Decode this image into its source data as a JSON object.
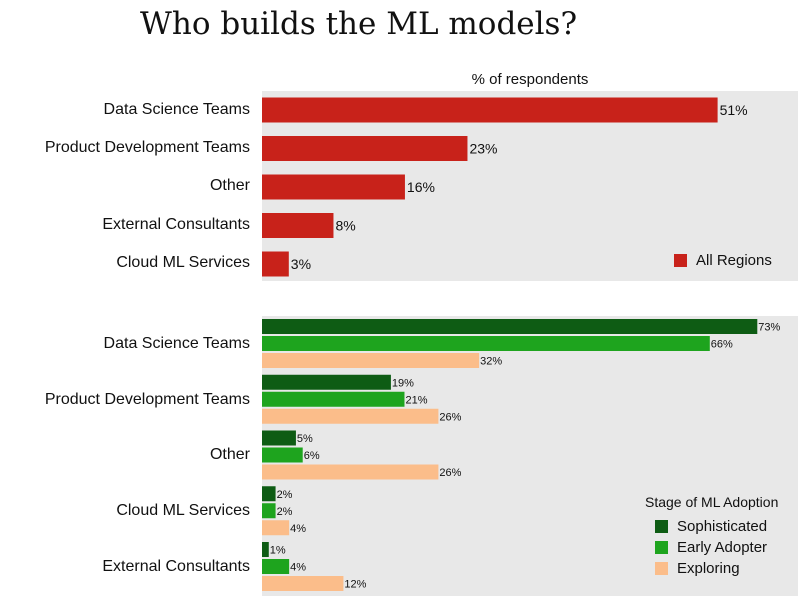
{
  "title": "Who builds the ML models?",
  "chart_data": [
    {
      "type": "bar",
      "orientation": "horizontal",
      "subtitle": "% of respondents",
      "categories": [
        "Data Science Teams",
        "Product Development Teams",
        "Other",
        "External Consultants",
        "Cloud ML Services"
      ],
      "series": [
        {
          "name": "All Regions",
          "values": [
            51,
            23,
            16,
            8,
            3
          ],
          "labels": [
            "51%",
            "23%",
            "16%",
            "8%",
            "3%"
          ],
          "color": "#c8221a"
        }
      ],
      "xlim": [
        0,
        60
      ],
      "grid": false,
      "legend_position": "bottom-right"
    },
    {
      "type": "bar",
      "orientation": "horizontal",
      "legend_title": "Stage of ML Adoption",
      "categories": [
        "Data Science Teams",
        "Product Development Teams",
        "Other",
        "Cloud ML Services",
        "External Consultants"
      ],
      "series": [
        {
          "name": "Sophisticated",
          "values": [
            73,
            19,
            5,
            2,
            1
          ],
          "labels": [
            "73%",
            "19%",
            "5%",
            "2%",
            "1%"
          ],
          "color": "#0e5c14"
        },
        {
          "name": "Early Adopter",
          "values": [
            66,
            21,
            6,
            2,
            4
          ],
          "labels": [
            "66%",
            "21%",
            "6%",
            "2%",
            "4%"
          ],
          "color": "#1ea41e"
        },
        {
          "name": "Exploring",
          "values": [
            32,
            26,
            26,
            4,
            12
          ],
          "labels": [
            "32%",
            "26%",
            "26%",
            "4%",
            "12%"
          ],
          "color": "#fbbd8a"
        }
      ],
      "xlim": [
        0,
        79
      ],
      "grid": false,
      "legend_position": "bottom-right"
    }
  ]
}
